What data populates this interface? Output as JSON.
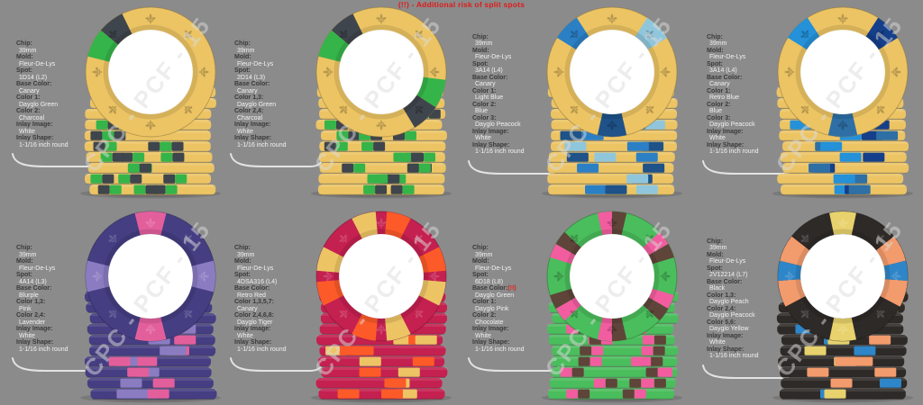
{
  "note": {
    "text": "(!!) - Additional risk of split spots",
    "color": "#e01b1b"
  },
  "watermark": "CPC - PCF - 15",
  "background_color": "#8b8b8b",
  "chips": [
    {
      "specs": [
        [
          "Chip:",
          "39mm"
        ],
        [
          "Mold:",
          "Fleur-De-Lys"
        ],
        [
          "Spot:",
          "1D14 (L2)"
        ],
        [
          "Base Color:",
          "Canary"
        ],
        [
          "Color 1:",
          "Dayglo Green"
        ],
        [
          "Color 2:",
          "Charcoal"
        ],
        [
          "Inlay Image:",
          "White"
        ],
        [
          "Inlay Shape:",
          "1-1/16 inch round"
        ]
      ],
      "base": "#ecc464",
      "spots": [
        [
          "#3f454c",
          -50,
          -26
        ],
        [
          "#35b44a",
          -76,
          -50
        ]
      ],
      "edge_colors": [
        "#35b44a",
        "#3f454c"
      ],
      "pair": true
    },
    {
      "specs": [
        [
          "Chip:",
          "39mm"
        ],
        [
          "Mold:",
          "Fleur-De-Lys"
        ],
        [
          "Spot:",
          "2D14 (L3)"
        ],
        [
          "Base Color:",
          "Canary"
        ],
        [
          "Color 1,3:",
          "Dayglo Green"
        ],
        [
          "Color 2,4:",
          "Charcoal"
        ],
        [
          "Inlay Image:",
          "White"
        ],
        [
          "Inlay Shape:",
          "1-1/16 inch round"
        ]
      ],
      "base": "#ecc464",
      "spots": [
        [
          "#3f454c",
          -50,
          -26
        ],
        [
          "#35b44a",
          -76,
          -50
        ],
        [
          "#35b44a",
          97,
          123
        ],
        [
          "#3f454c",
          123,
          149
        ]
      ],
      "edge_colors": [
        "#35b44a",
        "#3f454c"
      ],
      "pair": true
    },
    {
      "specs": [
        [
          "Chip:",
          "39mm"
        ],
        [
          "Mold:",
          "Fleur-De-Lys"
        ],
        [
          "Spot:",
          "3A14 (L4)"
        ],
        [
          "Base Color:",
          "Canary"
        ],
        [
          "Color 1:",
          "Light Blue"
        ],
        [
          "Color 2:",
          "Blue"
        ],
        [
          "Color 3:",
          "Dayglo Peacock"
        ],
        [
          "Inlay Image:",
          "White"
        ],
        [
          "Inlay Shape:",
          "1-1/16 inch round"
        ]
      ],
      "base": "#ecc464",
      "spots": [
        [
          "#2b7fc5",
          -58,
          -33
        ],
        [
          "#90c6dc",
          33,
          58
        ],
        [
          "#1e5288",
          167,
          193
        ]
      ],
      "edge_colors": [
        "#90c6dc",
        "#2b7fc5",
        "#1e5288"
      ],
      "pair": false
    },
    {
      "specs": [
        [
          "Chip:",
          "39mm"
        ],
        [
          "Mold:",
          "Fleur-De-Lys"
        ],
        [
          "Spot:",
          "3A14 (L4)"
        ],
        [
          "Base Color:",
          "Canary"
        ],
        [
          "Color 1:",
          "Retro Blue"
        ],
        [
          "Color 2:",
          "Blue"
        ],
        [
          "Color 3:",
          "Dayglo Peacock"
        ],
        [
          "Inlay Image:",
          "White"
        ],
        [
          "Inlay Shape:",
          "1-1/16 inch round"
        ]
      ],
      "base": "#ecc464",
      "spots": [
        [
          "#2491d8",
          -58,
          -33
        ],
        [
          "#153f8a",
          33,
          58
        ],
        [
          "#2e6fa5",
          167,
          193
        ]
      ],
      "edge_colors": [
        "#2491d8",
        "#153f8a",
        "#2e6fa5"
      ],
      "pair": false
    },
    {
      "specs": [
        [
          "Chip:",
          "39mm"
        ],
        [
          "Mold:",
          "Fleur-De-Lys"
        ],
        [
          "Spot:",
          "4A14 (L3)"
        ],
        [
          "Base Color:",
          "Blurple"
        ],
        [
          "Color 1,3:",
          "Pink"
        ],
        [
          "Color 2,4:",
          "Lavender"
        ],
        [
          "Inlay Image:",
          "White"
        ],
        [
          "Inlay Shape:",
          "1-1/16 inch round"
        ]
      ],
      "base": "#453e82",
      "spots": [
        [
          "#e35f9c",
          -14,
          14
        ],
        [
          "#8b7cc2",
          76,
          104
        ],
        [
          "#e35f9c",
          166,
          194
        ],
        [
          "#8b7cc2",
          256,
          284
        ]
      ],
      "edge_colors": [
        "#e35f9c",
        "#8b7cc2"
      ],
      "pair": false
    },
    {
      "specs": [
        [
          "Chip:",
          "39mm"
        ],
        [
          "Mold:",
          "Fleur-De-Lys"
        ],
        [
          "Spot:",
          "4DSA316 (L4)"
        ],
        [
          "Base Color:",
          "Retro Red"
        ],
        [
          "Color 1,3,5,7:",
          "Canary"
        ],
        [
          "Color 2,4,6,8:",
          "Dayglo Tiger"
        ],
        [
          "Inlay Image:",
          "White"
        ],
        [
          "Inlay Shape:",
          "1-1/16 inch round"
        ]
      ],
      "base": "#c42050",
      "spots": [
        [
          "#ecc464",
          -27,
          -5
        ],
        [
          "#fc5a28",
          5,
          27
        ],
        [
          "#fc5a28",
          63,
          85
        ],
        [
          "#ecc464",
          95,
          117
        ],
        [
          "#ecc464",
          153,
          175
        ],
        [
          "#fc5a28",
          185,
          207
        ],
        [
          "#fc5a28",
          243,
          265
        ],
        [
          "#ecc464",
          275,
          297
        ]
      ],
      "edge_colors": [
        "#ecc464",
        "#fc5a28"
      ],
      "pair": false
    },
    {
      "specs": [
        [
          "Chip:",
          "39mm"
        ],
        [
          "Mold:",
          "Fleur-De-Lys"
        ],
        [
          "Spot:",
          "6D18 (L8)"
        ],
        [
          "Base Color:",
          "Dayglo Green",
          "(!!)"
        ],
        [
          "Color 1:",
          "Dayglo Pink"
        ],
        [
          "Color 2:",
          "Chocolate"
        ],
        [
          "Inlay Image:",
          "White"
        ],
        [
          "Inlay Shape:",
          "1-1/16 inch round"
        ]
      ],
      "base": "#4abd5c",
      "spots": [
        [
          "#f25d9f",
          -13,
          0
        ],
        [
          "#5f4439",
          0,
          13
        ],
        [
          "#f25d9f",
          47,
          60
        ],
        [
          "#5f4439",
          60,
          73
        ],
        [
          "#f25d9f",
          107,
          120
        ],
        [
          "#5f4439",
          120,
          133
        ],
        [
          "#5f4439",
          167,
          180
        ],
        [
          "#f25d9f",
          180,
          193
        ],
        [
          "#f25d9f",
          227,
          240
        ],
        [
          "#5f4439",
          240,
          253
        ],
        [
          "#f25d9f",
          287,
          300
        ],
        [
          "#5f4439",
          300,
          313
        ]
      ],
      "edge_colors": [
        "#f25d9f",
        "#5f4439"
      ],
      "pair": true
    },
    {
      "specs": [
        [
          "Chip:",
          "39mm"
        ],
        [
          "Mold:",
          "Fleur-De-Lys"
        ],
        [
          "Spot:",
          "2V12214 (L7)"
        ],
        [
          "Base Color:",
          "Black"
        ],
        [
          "Color 1,3:",
          "Dayglo Peach"
        ],
        [
          "Color 2,4:",
          "Dayglo Peacock"
        ],
        [
          "Color 5,6:",
          "Dayglo Yellow"
        ],
        [
          "Inlay Image:",
          "White"
        ],
        [
          "Inlay Shape:",
          "1-1/16 inch round"
        ]
      ],
      "base": "#2e2a28",
      "spots": [
        [
          "#e8d26d",
          -12,
          12
        ],
        [
          "#f29b6d",
          52,
          76
        ],
        [
          "#2e86c8",
          76,
          94
        ],
        [
          "#f29b6d",
          94,
          118
        ],
        [
          "#e8d26d",
          168,
          192
        ],
        [
          "#f29b6d",
          242,
          266
        ],
        [
          "#2e86c8",
          266,
          284
        ],
        [
          "#f29b6d",
          284,
          308
        ]
      ],
      "edge_colors": [
        "#f29b6d",
        "#2e86c8",
        "#e8d26d",
        "#f29b6d"
      ],
      "pair": false
    }
  ]
}
